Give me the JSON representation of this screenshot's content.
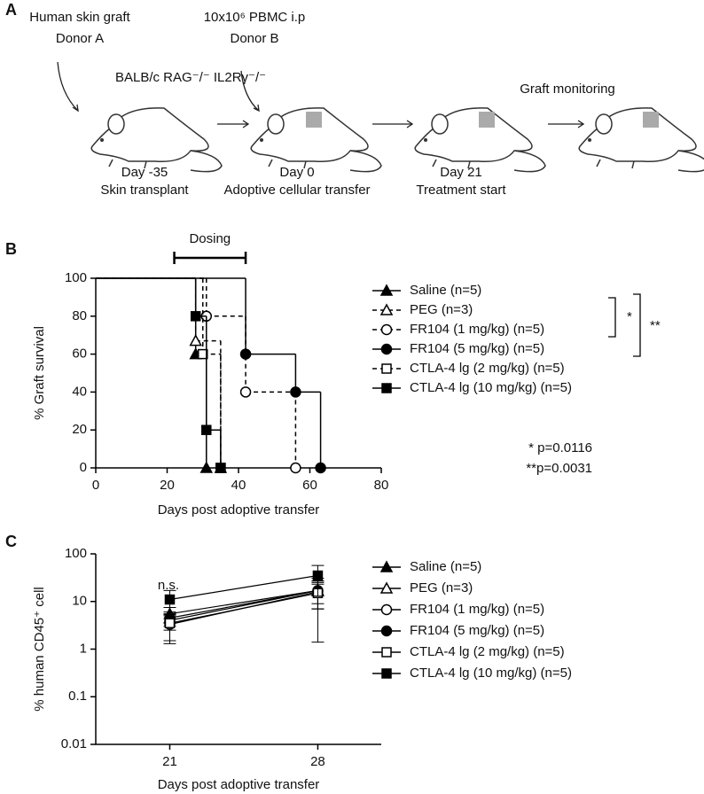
{
  "panel_labels": [
    "A",
    "B",
    "C"
  ],
  "diagram": {
    "donor_a": [
      "Human skin graft",
      "Donor A"
    ],
    "donor_b": [
      "10x10⁶ PBMC i.p",
      "Donor B"
    ],
    "strain": "BALB/c RAG⁻/⁻ IL2Rγ⁻/⁻",
    "monitoring": "Graft monitoring",
    "timeline": [
      {
        "day": "Day -35",
        "event": "Skin transplant"
      },
      {
        "day": "Day 0",
        "event": "Adoptive cellular transfer"
      },
      {
        "day": "Day 21",
        "event": "Treatment start"
      }
    ]
  },
  "chart_data": [
    {
      "type": "step",
      "xlabel": "Days post adoptive transfer",
      "ylabel": "% Graft survival",
      "xlim": [
        0,
        80
      ],
      "ylim": [
        0,
        100
      ],
      "xticks": [
        0,
        20,
        40,
        60,
        80
      ],
      "yticks": [
        0,
        20,
        40,
        60,
        80,
        100
      ],
      "dosing": {
        "label": "Dosing",
        "range": [
          22,
          42
        ]
      },
      "significance": [
        "*",
        "**"
      ],
      "annotations": [
        "* p=0.0116",
        "**p=0.0031"
      ],
      "series": [
        {
          "name": "Saline (n=5)",
          "color": "#000000",
          "marker": "triangle",
          "filled": true,
          "dashed": false,
          "x": [
            0,
            28,
            31
          ],
          "values": [
            100,
            60,
            0
          ]
        },
        {
          "name": "PEG (n=3)",
          "color": "#000000",
          "marker": "triangle",
          "filled": false,
          "dashed": true,
          "x": [
            0,
            28,
            35
          ],
          "values": [
            100,
            67,
            0
          ]
        },
        {
          "name": "FR104 (1 mg/kg) (n=5)",
          "color": "#000000",
          "marker": "circle",
          "filled": false,
          "dashed": true,
          "x": [
            0,
            31,
            42,
            56
          ],
          "values": [
            100,
            80,
            40,
            0
          ]
        },
        {
          "name": "FR104 (5 mg/kg) (n=5)",
          "color": "#000000",
          "marker": "circle",
          "filled": true,
          "dashed": false,
          "x": [
            0,
            42,
            56,
            63
          ],
          "values": [
            100,
            60,
            40,
            0
          ]
        },
        {
          "name": "CTLA-4 lg (2 mg/kg) (n=5)",
          "color": "#000000",
          "marker": "square",
          "filled": false,
          "dashed": true,
          "x": [
            0,
            30,
            35
          ],
          "values": [
            100,
            60,
            0
          ]
        },
        {
          "name": "CTLA-4 lg (10 mg/kg) (n=5)",
          "color": "#000000",
          "marker": "square",
          "filled": true,
          "dashed": false,
          "x": [
            0,
            28,
            31,
            35
          ],
          "values": [
            100,
            80,
            20,
            0
          ]
        }
      ]
    },
    {
      "type": "line",
      "xlabel": "Days post adoptive transfer",
      "ylabel": "% human CD45⁺ cell",
      "annotation": "n.s.",
      "log_scale": true,
      "x": [
        21,
        28
      ],
      "xlim": [
        17.5,
        31
      ],
      "xticks": [
        21,
        28
      ],
      "ylim": [
        0.01,
        100
      ],
      "yticks": [
        0.01,
        0.1,
        1,
        10,
        100
      ],
      "series": [
        {
          "name": "Saline (n=5)",
          "color": "#000000",
          "marker": "triangle",
          "filled": true,
          "values": [
            5.5,
            17
          ],
          "errors": [
            2,
            10
          ]
        },
        {
          "name": "PEG (n=3)",
          "color": "#000000",
          "marker": "triangle",
          "filled": false,
          "values": [
            4.5,
            17
          ],
          "errors": [
            1.5,
            8
          ]
        },
        {
          "name": "FR104 (1 mg/kg) (n=5)",
          "color": "#000000",
          "marker": "circle",
          "filled": false,
          "values": [
            3.3,
            16
          ],
          "errors": [
            2,
            14.6
          ]
        },
        {
          "name": "FR104 (5 mg/kg) (n=5)",
          "color": "#000000",
          "marker": "circle",
          "filled": true,
          "values": [
            4,
            17
          ],
          "errors": [
            1.5,
            10
          ]
        },
        {
          "name": "CTLA-4 lg (2 mg/kg) (n=5)",
          "color": "#000000",
          "marker": "square",
          "filled": false,
          "values": [
            3.5,
            15
          ],
          "errors": [
            2,
            8
          ]
        },
        {
          "name": "CTLA-4 lg (10 mg/kg) (n=5)",
          "color": "#000000",
          "marker": "square",
          "filled": true,
          "values": [
            11,
            35
          ],
          "errors": [
            6,
            22
          ]
        }
      ]
    }
  ]
}
